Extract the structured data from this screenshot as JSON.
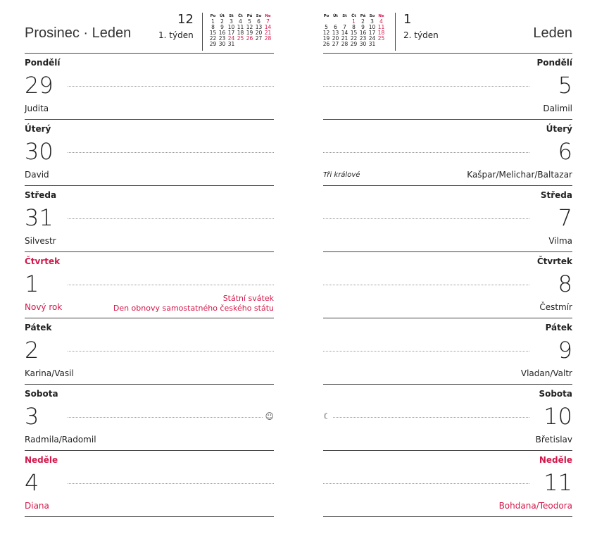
{
  "left": {
    "title": "Prosinec · Leden",
    "week_number": "12",
    "week_label": "1. týden",
    "mini_calendar": {
      "headers": [
        "Po",
        "Út",
        "St",
        "Čt",
        "Pá",
        "So",
        "Ne"
      ],
      "rows": [
        [
          "1",
          "2",
          "3",
          "4",
          "5",
          "6",
          "7"
        ],
        [
          "8",
          "9",
          "10",
          "11",
          "12",
          "13",
          "14"
        ],
        [
          "15",
          "16",
          "17",
          "18",
          "19",
          "20",
          "21"
        ],
        [
          "22",
          "23",
          "24",
          "25",
          "26",
          "27",
          "28"
        ],
        [
          "29",
          "30",
          "31",
          "",
          "",
          "",
          ""
        ]
      ],
      "red": [
        "7",
        "14",
        "21",
        "24",
        "25",
        "26",
        "28"
      ]
    },
    "days": [
      {
        "name": "Pondělí",
        "number": "29",
        "nameday": "Judita"
      },
      {
        "name": "Úterý",
        "number": "30",
        "nameday": "David"
      },
      {
        "name": "Středa",
        "number": "31",
        "nameday": "Silvestr"
      },
      {
        "name": "Čtvrtek",
        "number": "1",
        "nameday": "Nový rok",
        "holiday": true,
        "notes": [
          "Státní svátek",
          "Den obnovy samostatného českého státu"
        ]
      },
      {
        "name": "Pátek",
        "number": "2",
        "nameday": "Karina/Vasil"
      },
      {
        "name": "Sobota",
        "number": "3",
        "nameday": "Radmila/Radomil",
        "icon": "full-moon-icon"
      },
      {
        "name": "Neděle",
        "number": "4",
        "nameday": "Diana",
        "holiday": true
      }
    ]
  },
  "right": {
    "title": "Leden",
    "week_number": "1",
    "week_label": "2. týden",
    "mini_calendar": {
      "headers": [
        "Po",
        "Út",
        "St",
        "Čt",
        "Pá",
        "So",
        "Ne"
      ],
      "rows": [
        [
          "",
          "",
          "",
          "1",
          "2",
          "3",
          "4"
        ],
        [
          "5",
          "6",
          "7",
          "8",
          "9",
          "10",
          "11"
        ],
        [
          "12",
          "13",
          "14",
          "15",
          "16",
          "17",
          "18"
        ],
        [
          "19",
          "20",
          "21",
          "22",
          "23",
          "24",
          "25"
        ],
        [
          "26",
          "27",
          "28",
          "29",
          "30",
          "31",
          ""
        ]
      ],
      "red": [
        "1",
        "4",
        "11",
        "18",
        "25"
      ]
    },
    "days": [
      {
        "name": "Pondělí",
        "number": "5",
        "nameday": "Dalimil"
      },
      {
        "name": "Úterý",
        "number": "6",
        "nameday": "Kašpar/Melichar/Baltazar",
        "italic": "Tři králové"
      },
      {
        "name": "Středa",
        "number": "7",
        "nameday": "Vilma"
      },
      {
        "name": "Čtvrtek",
        "number": "8",
        "nameday": "Čestmír"
      },
      {
        "name": "Pátek",
        "number": "9",
        "nameday": "Vladan/Valtr"
      },
      {
        "name": "Sobota",
        "number": "10",
        "nameday": "Břetislav",
        "icon": "crescent-moon-icon"
      },
      {
        "name": "Neděle",
        "number": "11",
        "nameday": "Bohdana/Teodora",
        "holiday": true
      }
    ]
  }
}
